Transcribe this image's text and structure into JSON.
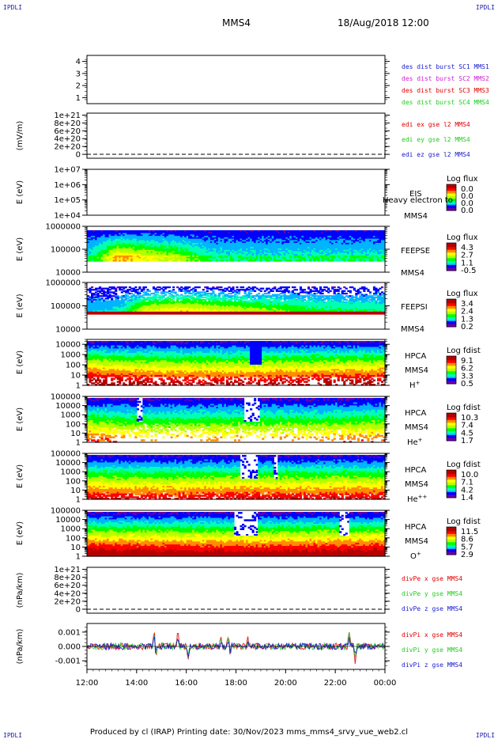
{
  "page": {
    "corner_labels": [
      "IPDLI",
      "IPDLI",
      "IPDLI",
      "IPDLI"
    ],
    "spacecraft": "MMS4",
    "datetime": "18/Aug/2018 12:00",
    "footer": "Produced by cl (IRAP)   Printing date: 30/Nov/2023   mms_mms4_srvy_vue_web2.cl"
  },
  "colors": {
    "red": "#e00000",
    "green": "#22cc22",
    "blue": "#1a1acc",
    "magenta": "#cc22cc",
    "spectrogram_scale": [
      "#6a00a8",
      "#0000ff",
      "#00b4ff",
      "#00ffb4",
      "#00ff00",
      "#b4ff00",
      "#ffff00",
      "#ff8c00",
      "#ff0000",
      "#b40000"
    ]
  },
  "chart_data": [
    {
      "type": "line",
      "id": "burst",
      "ylabel": "",
      "ylim": [
        0.5,
        4.5
      ],
      "y_ticks": [
        "1",
        "2",
        "3",
        "4"
      ],
      "series": [
        {
          "name": "des dist burst SC1 MMS1",
          "color": "#1a1acc",
          "values": []
        },
        {
          "name": "des dist burst SC2 MMS2",
          "color": "#cc22cc",
          "values": []
        },
        {
          "name": "des dist burst SC3 MMS3",
          "color": "#e00000",
          "values": []
        },
        {
          "name": "des dist burst SC4 MMS4",
          "color": "#22cc22",
          "values": []
        }
      ]
    },
    {
      "type": "line",
      "id": "edi",
      "ylabel": "(mV/m)",
      "ylim": [
        -1e+20,
        1.05e+21
      ],
      "y_ticks": [
        "0",
        "2e+20",
        "4e+20",
        "6e+20",
        "8e+20",
        "1e+21"
      ],
      "zero_line": true,
      "series": [
        {
          "name": "edi ex gse l2 MMS4",
          "color": "#e00000",
          "values": []
        },
        {
          "name": "edi ey gse l2 MMS4",
          "color": "#22cc22",
          "values": []
        },
        {
          "name": "edi ez gse l2 MMS4",
          "color": "#1a1acc",
          "values": []
        }
      ]
    },
    {
      "type": "heatmap",
      "id": "eis",
      "ylabel": "E (eV)",
      "yscale": "log",
      "ylim": [
        10000,
        10000000
      ],
      "y_ticks": [
        "1e+04",
        "1e+05",
        "1e+06",
        "1e+07"
      ],
      "instrument": [
        "EIS",
        "MMS4"
      ],
      "overlay_text": "Heavy electron to",
      "colorbar": {
        "title": "Log flux",
        "ticks": [
          "0.0",
          "0.0",
          "0.0",
          "0.0"
        ]
      },
      "profile": []
    },
    {
      "type": "heatmap",
      "id": "feepse",
      "ylabel": "E (eV)",
      "yscale": "log",
      "ylim": [
        10000,
        1000000
      ],
      "y_ticks": [
        "10000",
        "100000",
        "1000000"
      ],
      "instrument": [
        "FEEPSE",
        "MMS4"
      ],
      "colorbar": {
        "title": "Log flux",
        "ticks": [
          "4.3",
          "2.7",
          "1.1",
          "-0.5"
        ]
      },
      "profile": [
        [
          0.0,
          0.0
        ],
        [
          0.04,
          0.14
        ],
        [
          0.1,
          0.55
        ],
        [
          0.18,
          0.42
        ],
        [
          0.3,
          0.3
        ],
        [
          0.42,
          0.0
        ],
        [
          0.55,
          0.0
        ],
        [
          1.0,
          0.0
        ]
      ],
      "events": []
    },
    {
      "type": "heatmap",
      "id": "feepsi",
      "ylabel": "E (eV)",
      "yscale": "log",
      "ylim": [
        10000,
        1000000
      ],
      "y_ticks": [
        "10000",
        "100000",
        "1000000"
      ],
      "instrument": [
        "FEEPSI",
        "MMS4"
      ],
      "colorbar": {
        "title": "Log flux",
        "ticks": [
          "3.4",
          "2.4",
          "1.3",
          "0.2"
        ]
      },
      "profile": [
        [
          0.0,
          0.0
        ],
        [
          0.08,
          0.0
        ],
        [
          0.12,
          0.12
        ],
        [
          0.2,
          0.48
        ],
        [
          0.32,
          0.55
        ],
        [
          0.45,
          0.45
        ],
        [
          0.62,
          0.32
        ],
        [
          0.78,
          0.2
        ],
        [
          1.0,
          0.15
        ]
      ],
      "events": []
    },
    {
      "type": "heatmap",
      "id": "hpca-h",
      "ylabel": "E (eV)",
      "yscale": "log",
      "ylim": [
        1,
        30000
      ],
      "y_ticks": [
        "1",
        "10",
        "100",
        "1000",
        "10000"
      ],
      "instrument": [
        "HPCA",
        "MMS4"
      ],
      "species": {
        "base": "H",
        "sup": "+"
      },
      "colorbar": {
        "title": "Log fdist",
        "ticks": [
          "9.1",
          "6.2",
          "3.3",
          "0.5"
        ]
      },
      "profile": [
        [
          0.0,
          0.95
        ],
        [
          0.1,
          0.82
        ],
        [
          0.25,
          0.72
        ],
        [
          0.4,
          0.7
        ],
        [
          0.55,
          0.72
        ],
        [
          0.75,
          0.78
        ],
        [
          1.0,
          0.85
        ]
      ],
      "events": [
        {
          "at": 0.56,
          "width": 0.02
        }
      ]
    },
    {
      "type": "heatmap",
      "id": "hpca-he",
      "ylabel": "E (eV)",
      "yscale": "log",
      "ylim": [
        1,
        100000
      ],
      "y_ticks": [
        "1",
        "10",
        "100",
        "1000",
        "10000",
        "100000"
      ],
      "instrument": [
        "HPCA",
        "MMS4"
      ],
      "species": {
        "base": "He",
        "sup": "+"
      },
      "colorbar": {
        "title": "Log fdist",
        "ticks": [
          "10.3",
          "7.4",
          "4.5",
          "1.7"
        ]
      },
      "profile": [
        [
          0.0,
          0.48
        ],
        [
          0.12,
          0.35
        ],
        [
          0.25,
          0.25
        ],
        [
          0.4,
          0.32
        ],
        [
          0.55,
          0.28
        ],
        [
          0.7,
          0.3
        ],
        [
          0.85,
          0.35
        ],
        [
          1.0,
          0.42
        ]
      ],
      "events": [
        {
          "at": 0.55,
          "width": 0.025
        },
        {
          "at": 0.17,
          "width": 0.01
        }
      ]
    },
    {
      "type": "heatmap",
      "id": "hpca-hepp",
      "ylabel": "E (eV)",
      "yscale": "log",
      "ylim": [
        1,
        100000
      ],
      "y_ticks": [
        "1",
        "10",
        "100",
        "1000",
        "10000",
        "100000"
      ],
      "instrument": [
        "HPCA",
        "MMS4"
      ],
      "species": {
        "base": "He",
        "sup": "++"
      },
      "colorbar": {
        "title": "Log fdist",
        "ticks": [
          "10.0",
          "7.1",
          "4.2",
          "1.4"
        ]
      },
      "profile": [
        [
          0.0,
          0.6
        ],
        [
          0.15,
          0.55
        ],
        [
          0.3,
          0.55
        ],
        [
          0.5,
          0.6
        ],
        [
          0.7,
          0.56
        ],
        [
          1.0,
          0.6
        ]
      ],
      "events": [
        {
          "at": 0.54,
          "width": 0.03
        },
        {
          "at": 0.63,
          "width": 0.01
        }
      ]
    },
    {
      "type": "heatmap",
      "id": "hpca-o",
      "ylabel": "E (eV)",
      "yscale": "log",
      "ylim": [
        1,
        100000
      ],
      "y_ticks": [
        "1",
        "10",
        "100",
        "1000",
        "10000",
        "100000"
      ],
      "instrument": [
        "HPCA",
        "MMS4"
      ],
      "species": {
        "base": "O",
        "sup": "+"
      },
      "colorbar": {
        "title": "Log fdist",
        "ticks": [
          "11.5",
          "8.6",
          "5.7",
          "2.9"
        ]
      },
      "profile": [
        [
          0.0,
          0.9
        ],
        [
          0.2,
          0.85
        ],
        [
          0.4,
          0.82
        ],
        [
          0.55,
          0.8
        ],
        [
          0.75,
          0.84
        ],
        [
          1.0,
          0.88
        ]
      ],
      "events": [
        {
          "at": 0.53,
          "width": 0.04
        },
        {
          "at": 0.86,
          "width": 0.02
        }
      ]
    },
    {
      "type": "line",
      "id": "divpe",
      "ylabel": "(nPa/km)",
      "ylim": [
        -1e+20,
        1.05e+21
      ],
      "y_ticks": [
        "0",
        "2e+20",
        "4e+20",
        "6e+20",
        "8e+20",
        "1e+21"
      ],
      "zero_line": true,
      "series": [
        {
          "name": "divPe x gse MMS4",
          "color": "#e00000",
          "values": []
        },
        {
          "name": "divPe y gse MMS4",
          "color": "#22cc22",
          "values": []
        },
        {
          "name": "divPe z gse MMS4",
          "color": "#1a1acc",
          "values": []
        }
      ]
    },
    {
      "type": "line",
      "id": "divpi",
      "ylabel": "(nPa/km)",
      "ylim": [
        -0.0016,
        0.0016
      ],
      "y_ticks": [
        "-0.001",
        "0.000",
        "0.001"
      ],
      "series": [
        {
          "name": "divPi x gse MMS4",
          "color": "#e00000"
        },
        {
          "name": "divPi y gse MMS4",
          "color": "#22cc22"
        },
        {
          "name": "divPi z gse MMS4",
          "color": "#1a1acc"
        }
      ],
      "spikes": [
        {
          "at": 0.226,
          "value": 0.0013
        },
        {
          "at": 0.23,
          "value": -0.0009
        },
        {
          "at": 0.305,
          "value": 0.001
        },
        {
          "at": 0.34,
          "value": -0.0011
        },
        {
          "at": 0.45,
          "value": 0.0006
        },
        {
          "at": 0.475,
          "value": 0.0008
        },
        {
          "at": 0.48,
          "value": -0.0006
        },
        {
          "at": 0.54,
          "value": 0.0005
        },
        {
          "at": 0.88,
          "value": 0.0011
        },
        {
          "at": 0.9,
          "value": -0.001
        }
      ]
    }
  ],
  "time_axis": {
    "ticks": [
      "12:00",
      "14:00",
      "16:00",
      "18:00",
      "20:00",
      "22:00",
      "00:00"
    ],
    "start": "12:00",
    "end": "00:00"
  }
}
